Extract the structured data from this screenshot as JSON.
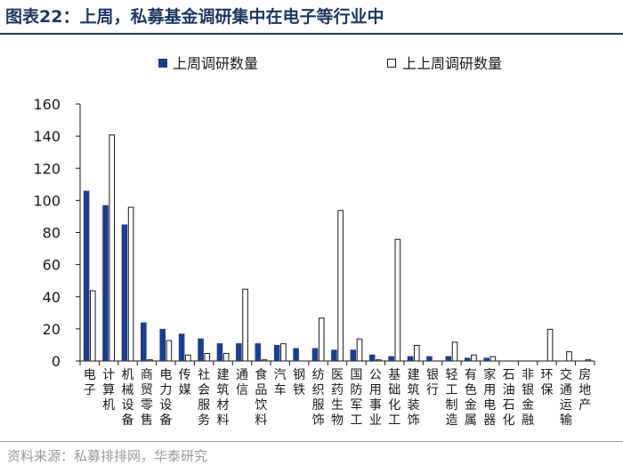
{
  "title": "图表22：上周，私募基金调研集中在电子等行业中",
  "source": "资料来源：私募排排网，华泰研究",
  "colors": {
    "last_week": "#1c3f8c",
    "prev_week_fill": "#ffffff",
    "prev_week_stroke": "#1a1a1a",
    "title": "#1c3a63"
  },
  "chart_data": {
    "type": "bar",
    "ylim": [
      0,
      160
    ],
    "yticks": [
      0,
      20,
      40,
      60,
      80,
      100,
      120,
      140,
      160
    ],
    "legend_position": "top",
    "grid": false,
    "categories": [
      "电子",
      "计算机",
      "机械设备",
      "商贸零售",
      "电力设备",
      "传媒",
      "社会服务",
      "建筑材料",
      "通信",
      "食品饮料",
      "汽车",
      "钢铁",
      "纺织服饰",
      "医药生物",
      "国防军工",
      "公用事业",
      "基础化工",
      "建筑装饰",
      "银行",
      "轻工制造",
      "有色金属",
      "家用电器",
      "石油石化",
      "非银金融",
      "环保",
      "交通运输",
      "房地产"
    ],
    "series": [
      {
        "name": "上周调研数量",
        "values": [
          106,
          97,
          85,
          24,
          20,
          17,
          14,
          11,
          11,
          11,
          10,
          8,
          8,
          7,
          7,
          4,
          3,
          3,
          3,
          3,
          2,
          2,
          0,
          0,
          0,
          0,
          0
        ]
      },
      {
        "name": "上上周调研数量",
        "values": [
          44,
          141,
          96,
          1,
          13,
          4,
          5,
          5,
          45,
          1,
          11,
          0,
          27,
          94,
          14,
          1,
          76,
          10,
          0,
          12,
          4,
          3,
          0,
          0,
          20,
          6,
          1
        ]
      }
    ]
  }
}
